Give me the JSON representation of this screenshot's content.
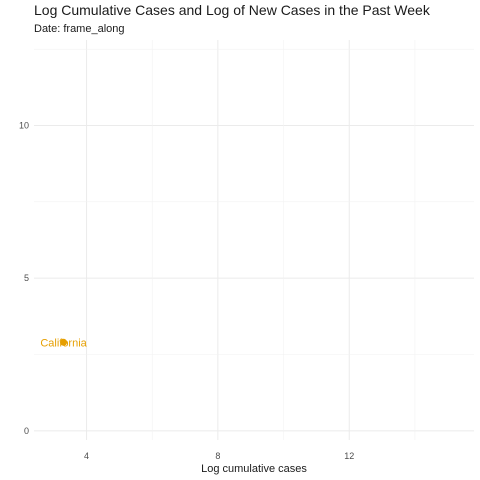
{
  "chart_data": {
    "type": "scatter",
    "title": "Log Cumulative Cases and Log of New Cases in the Past Week",
    "subtitle": "Date: frame_along",
    "xlabel": "Log cumulative cases",
    "ylabel": "",
    "xlim": [
      2.4,
      15.8
    ],
    "ylim": [
      -0.3,
      12.8
    ],
    "x_ticks": [
      4,
      8,
      12
    ],
    "x_tick_labels": [
      "4",
      "8",
      "12"
    ],
    "y_ticks": [
      0,
      5,
      10
    ],
    "y_tick_labels": [
      "0",
      "5",
      "10"
    ],
    "grid": true,
    "points": [
      {
        "label": "California",
        "x": 3.3,
        "y": 2.9,
        "color": "#e69f00"
      }
    ]
  }
}
